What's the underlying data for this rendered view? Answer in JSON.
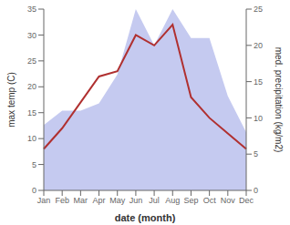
{
  "chart_data": {
    "type": "line",
    "xlabel": "date (month)",
    "ylabel": "max temp (C)",
    "y2label": "med. precipitation (kg/m2)",
    "categories": [
      "Jan",
      "Feb",
      "Mar",
      "Apr",
      "May",
      "Jun",
      "Jul",
      "Aug",
      "Sep",
      "Oct",
      "Nov",
      "Dec"
    ],
    "series": [
      {
        "type": "area",
        "axis": "y2",
        "color": "#c5caf0",
        "values": [
          9,
          11,
          11,
          12,
          16,
          25,
          20,
          25,
          21,
          21,
          13,
          8
        ]
      },
      {
        "type": "line",
        "color": "#b03030",
        "values": [
          8,
          12,
          17,
          22,
          23,
          30,
          28,
          32,
          18,
          14,
          11,
          8
        ]
      }
    ],
    "ylim": [
      0,
      35
    ],
    "yticks": [
      0,
      5,
      10,
      15,
      20,
      25,
      30,
      35
    ],
    "y2lim": [
      0,
      25
    ],
    "y2ticks": [
      0,
      5,
      10,
      15,
      20,
      25
    ],
    "grid": false
  }
}
